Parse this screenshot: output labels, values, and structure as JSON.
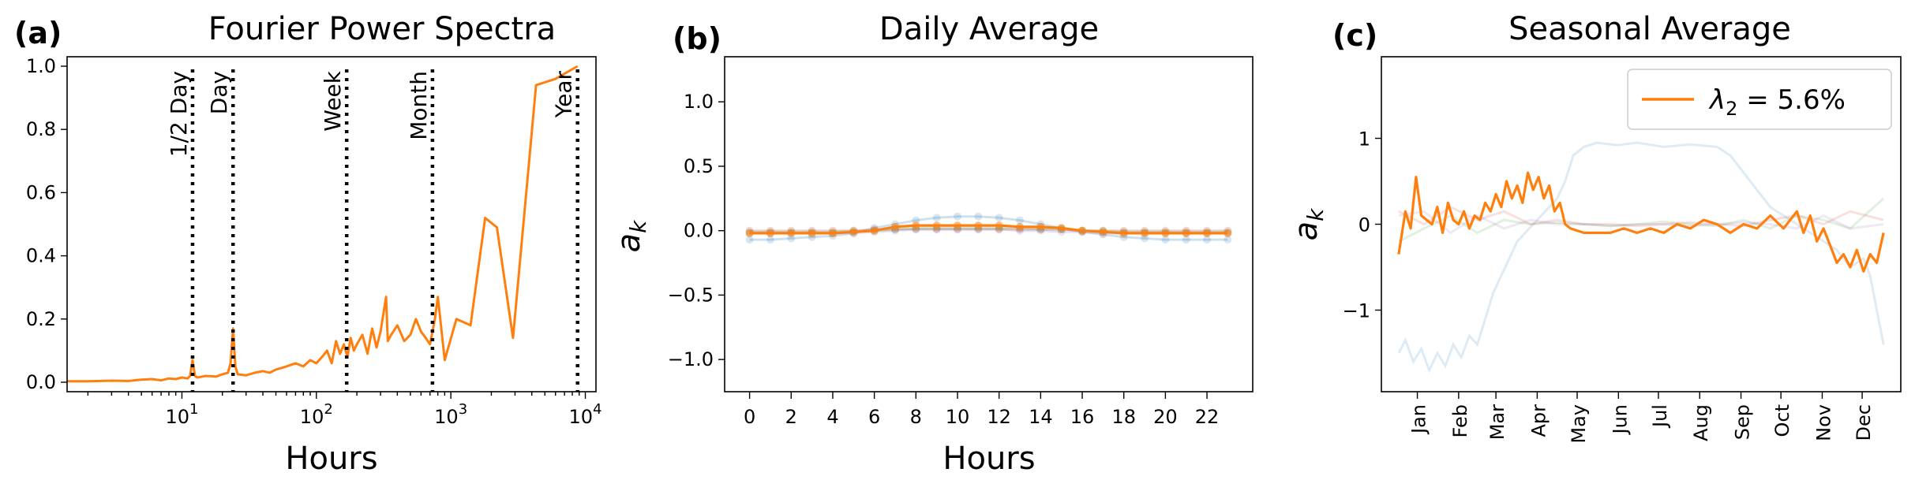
{
  "chart_data": [
    {
      "panel": "(a)",
      "type": "line",
      "title": "Fourier Power Spectra",
      "xlabel": "Hours",
      "ylabel": "",
      "xscale": "log",
      "xlim": [
        1.4,
        12000
      ],
      "ylim": [
        -0.03,
        1.03
      ],
      "xticks": [
        {
          "value": 10,
          "base": "10",
          "exp": "1"
        },
        {
          "value": 100,
          "base": "10",
          "exp": "2"
        },
        {
          "value": 1000,
          "base": "10",
          "exp": "3"
        },
        {
          "value": 10000,
          "base": "10",
          "exp": "4"
        }
      ],
      "yticks": [
        0.0,
        0.2,
        0.4,
        0.6,
        0.8,
        1.0
      ],
      "ytick_labels": [
        "0.0",
        "0.2",
        "0.4",
        "0.6",
        "0.8",
        "1.0"
      ],
      "color": "#ff7f0e",
      "vlines": [
        {
          "x": 12,
          "label": "1/2 Day"
        },
        {
          "x": 24,
          "label": "Day"
        },
        {
          "x": 168,
          "label": "Week"
        },
        {
          "x": 730,
          "label": "Month"
        },
        {
          "x": 8760,
          "label": "Year"
        }
      ],
      "series": [
        {
          "x": [
            1.4,
            2,
            3,
            4,
            5,
            6,
            7,
            8,
            9,
            10,
            11,
            11.5,
            12,
            12.5,
            13,
            15,
            18,
            20,
            22,
            23,
            24,
            25,
            26,
            30,
            35,
            40,
            45,
            50,
            55,
            60,
            70,
            80,
            90,
            100,
            110,
            120,
            130,
            140,
            150,
            160,
            170,
            180,
            190,
            200,
            220,
            240,
            260,
            280,
            300,
            330,
            340,
            360,
            400,
            450,
            500,
            550,
            600,
            650,
            700,
            760,
            800,
            900,
            1100,
            1400,
            1800,
            2200,
            2900,
            4300,
            6000,
            8760
          ],
          "y": [
            0.003,
            0.003,
            0.005,
            0.004,
            0.008,
            0.01,
            0.006,
            0.012,
            0.01,
            0.015,
            0.012,
            0.02,
            0.07,
            0.02,
            0.015,
            0.02,
            0.018,
            0.025,
            0.03,
            0.06,
            0.17,
            0.05,
            0.025,
            0.022,
            0.03,
            0.035,
            0.03,
            0.04,
            0.045,
            0.05,
            0.06,
            0.05,
            0.07,
            0.06,
            0.08,
            0.1,
            0.06,
            0.13,
            0.09,
            0.12,
            0.08,
            0.14,
            0.1,
            0.12,
            0.15,
            0.09,
            0.17,
            0.11,
            0.16,
            0.27,
            0.13,
            0.15,
            0.18,
            0.13,
            0.15,
            0.2,
            0.16,
            0.14,
            0.12,
            0.2,
            0.27,
            0.07,
            0.2,
            0.18,
            0.52,
            0.49,
            0.14,
            0.94,
            0.96,
            1.0
          ]
        }
      ]
    },
    {
      "panel": "(b)",
      "type": "line",
      "title": "Daily Average",
      "xlabel": "Hours",
      "ylabel": "a_k",
      "xlim": [
        -1.2,
        24.2
      ],
      "ylim": [
        -1.25,
        1.35
      ],
      "xticks": [
        0,
        2,
        4,
        6,
        8,
        10,
        12,
        14,
        16,
        18,
        20,
        22
      ],
      "yticks": [
        -1.0,
        -0.5,
        0.0,
        0.5,
        1.0
      ],
      "ytick_labels": [
        "−1.0",
        "−0.5",
        "0.0",
        "0.5",
        "1.0"
      ],
      "x": [
        0,
        1,
        2,
        3,
        4,
        5,
        6,
        7,
        8,
        9,
        10,
        11,
        12,
        13,
        14,
        15,
        16,
        17,
        18,
        19,
        20,
        21,
        22,
        23
      ],
      "series": [
        {
          "color": "#ff7f0e",
          "highlight": true,
          "values": [
            -0.02,
            -0.02,
            -0.02,
            -0.02,
            -0.02,
            -0.01,
            0.0,
            0.03,
            0.04,
            0.04,
            0.04,
            0.04,
            0.04,
            0.03,
            0.03,
            0.02,
            0.0,
            -0.01,
            -0.02,
            -0.02,
            -0.02,
            -0.02,
            -0.02,
            -0.02
          ]
        },
        {
          "color": "#1f77b4",
          "highlight": false,
          "values": [
            -0.07,
            -0.07,
            -0.06,
            -0.05,
            -0.04,
            -0.02,
            0.02,
            0.05,
            0.08,
            0.1,
            0.11,
            0.11,
            0.1,
            0.08,
            0.05,
            0.02,
            -0.01,
            -0.03,
            -0.05,
            -0.06,
            -0.07,
            -0.07,
            -0.07,
            -0.07
          ]
        },
        {
          "color": "#d62728",
          "highlight": false,
          "values": [
            0.0,
            0.0,
            0.0,
            0.0,
            0.0,
            0.0,
            0.01,
            0.01,
            0.01,
            0.01,
            0.01,
            0.01,
            0.01,
            0.01,
            0.01,
            0.01,
            0.0,
            0.0,
            0.0,
            0.0,
            0.0,
            0.0,
            0.0,
            0.0
          ]
        },
        {
          "color": "#9467bd",
          "highlight": false,
          "values": [
            -0.02,
            -0.02,
            -0.02,
            -0.02,
            -0.02,
            -0.02,
            -0.01,
            0.0,
            0.01,
            0.01,
            0.01,
            0.01,
            0.01,
            0.0,
            0.0,
            -0.01,
            -0.01,
            -0.02,
            -0.02,
            -0.02,
            -0.02,
            -0.02,
            -0.02,
            -0.02
          ]
        },
        {
          "color": "#2ca02c",
          "highlight": false,
          "values": [
            -0.01,
            -0.01,
            -0.01,
            -0.01,
            -0.01,
            0.0,
            0.0,
            0.01,
            0.02,
            0.02,
            0.02,
            0.02,
            0.02,
            0.02,
            0.01,
            0.01,
            0.0,
            0.0,
            -0.01,
            -0.01,
            -0.01,
            -0.01,
            -0.01,
            -0.01
          ]
        }
      ]
    },
    {
      "panel": "(c)",
      "type": "line",
      "title": "Seasonal Average",
      "xlabel": "",
      "ylabel": "a_k",
      "xlim": [
        -12,
        378
      ],
      "ylim": [
        -1.95,
        1.95
      ],
      "yticks": [
        -1,
        0,
        1
      ],
      "ytick_labels": [
        "−1",
        "0",
        "1"
      ],
      "xticks": [
        {
          "value": 15,
          "label": "Jan"
        },
        {
          "value": 46,
          "label": "Feb"
        },
        {
          "value": 74,
          "label": "Mar"
        },
        {
          "value": 105,
          "label": "Apr"
        },
        {
          "value": 135,
          "label": "May"
        },
        {
          "value": 166,
          "label": "Jun"
        },
        {
          "value": 196,
          "label": "Jul"
        },
        {
          "value": 227,
          "label": "Aug"
        },
        {
          "value": 258,
          "label": "Sep"
        },
        {
          "value": 288,
          "label": "Oct"
        },
        {
          "value": 319,
          "label": "Nov"
        },
        {
          "value": 349,
          "label": "Dec"
        }
      ],
      "legend": {
        "label_prefix": "λ",
        "label_sub": "2",
        "label_suffix": " = 5.6%",
        "color": "#ff7f0e",
        "position": "upper right"
      },
      "series": [
        {
          "color": "#ff7f0e",
          "highlight": true,
          "x": [
            1,
            6,
            10,
            14,
            18,
            22,
            26,
            30,
            34,
            38,
            42,
            46,
            50,
            54,
            58,
            62,
            66,
            70,
            74,
            78,
            82,
            86,
            90,
            94,
            98,
            102,
            106,
            110,
            114,
            118,
            122,
            126,
            130,
            140,
            150,
            160,
            170,
            180,
            190,
            200,
            210,
            220,
            230,
            240,
            250,
            260,
            270,
            280,
            290,
            300,
            305,
            310,
            315,
            320,
            325,
            330,
            335,
            340,
            345,
            350,
            355,
            360,
            365
          ],
          "values": [
            -0.35,
            0.15,
            -0.05,
            0.55,
            0.1,
            0.05,
            0.0,
            0.2,
            -0.1,
            0.25,
            0.05,
            0.0,
            0.15,
            -0.05,
            0.1,
            0.05,
            0.25,
            0.15,
            0.35,
            0.2,
            0.5,
            0.3,
            0.45,
            0.25,
            0.6,
            0.4,
            0.55,
            0.3,
            0.45,
            0.15,
            0.25,
            0.0,
            -0.05,
            -0.1,
            -0.1,
            -0.1,
            -0.05,
            -0.1,
            -0.05,
            -0.1,
            0.0,
            -0.05,
            0.05,
            0.0,
            -0.1,
            0.0,
            -0.05,
            0.1,
            -0.05,
            0.15,
            -0.1,
            0.1,
            -0.2,
            -0.05,
            -0.25,
            -0.45,
            -0.35,
            -0.5,
            -0.3,
            -0.55,
            -0.35,
            -0.45,
            -0.1
          ]
        },
        {
          "color": "#1f77b4",
          "highlight": false,
          "x": [
            1,
            6,
            12,
            18,
            24,
            30,
            36,
            42,
            48,
            54,
            60,
            66,
            72,
            78,
            84,
            90,
            96,
            102,
            108,
            114,
            120,
            126,
            132,
            140,
            150,
            165,
            180,
            200,
            220,
            240,
            250,
            260,
            270,
            280,
            290,
            300,
            310,
            320,
            330,
            340,
            350,
            355,
            360,
            365
          ],
          "values": [
            -1.5,
            -1.35,
            -1.6,
            -1.45,
            -1.7,
            -1.5,
            -1.65,
            -1.4,
            -1.55,
            -1.3,
            -1.4,
            -1.1,
            -0.8,
            -0.6,
            -0.4,
            -0.2,
            -0.1,
            0.0,
            0.1,
            0.2,
            0.3,
            0.5,
            0.8,
            0.9,
            0.95,
            0.92,
            0.95,
            0.9,
            0.93,
            0.9,
            0.8,
            0.6,
            0.4,
            0.2,
            0.1,
            0.0,
            -0.1,
            -0.2,
            -0.3,
            -0.5,
            -0.4,
            -0.6,
            -1.0,
            -1.4
          ]
        },
        {
          "color": "#2ca02c",
          "highlight": false,
          "x": [
            1,
            20,
            40,
            60,
            80,
            100,
            120,
            140,
            160,
            180,
            200,
            220,
            240,
            260,
            280,
            300,
            320,
            340,
            365
          ],
          "values": [
            -0.2,
            -0.05,
            0.1,
            -0.1,
            0.05,
            0.0,
            0.02,
            0.0,
            -0.02,
            0.0,
            0.03,
            0.0,
            -0.02,
            0.05,
            -0.05,
            0.1,
            0.05,
            -0.05,
            0.3
          ]
        },
        {
          "color": "#d62728",
          "highlight": false,
          "x": [
            1,
            20,
            40,
            60,
            80,
            100,
            120,
            140,
            160,
            180,
            200,
            220,
            240,
            260,
            280,
            300,
            320,
            340,
            365
          ],
          "values": [
            0.15,
            0.0,
            0.2,
            0.05,
            0.15,
            0.0,
            0.05,
            0.0,
            0.0,
            -0.02,
            0.0,
            0.02,
            0.0,
            -0.02,
            0.05,
            0.1,
            0.0,
            0.15,
            0.05
          ]
        },
        {
          "color": "#9467bd",
          "highlight": false,
          "x": [
            1,
            20,
            40,
            60,
            80,
            100,
            120,
            140,
            160,
            180,
            200,
            220,
            240,
            260,
            280,
            300,
            320,
            340,
            365
          ],
          "values": [
            0.1,
            0.15,
            -0.1,
            0.1,
            -0.05,
            0.05,
            0.0,
            0.0,
            -0.02,
            0.0,
            0.0,
            -0.02,
            0.0,
            0.02,
            0.0,
            -0.05,
            0.1,
            -0.05,
            0.0
          ]
        }
      ]
    }
  ]
}
